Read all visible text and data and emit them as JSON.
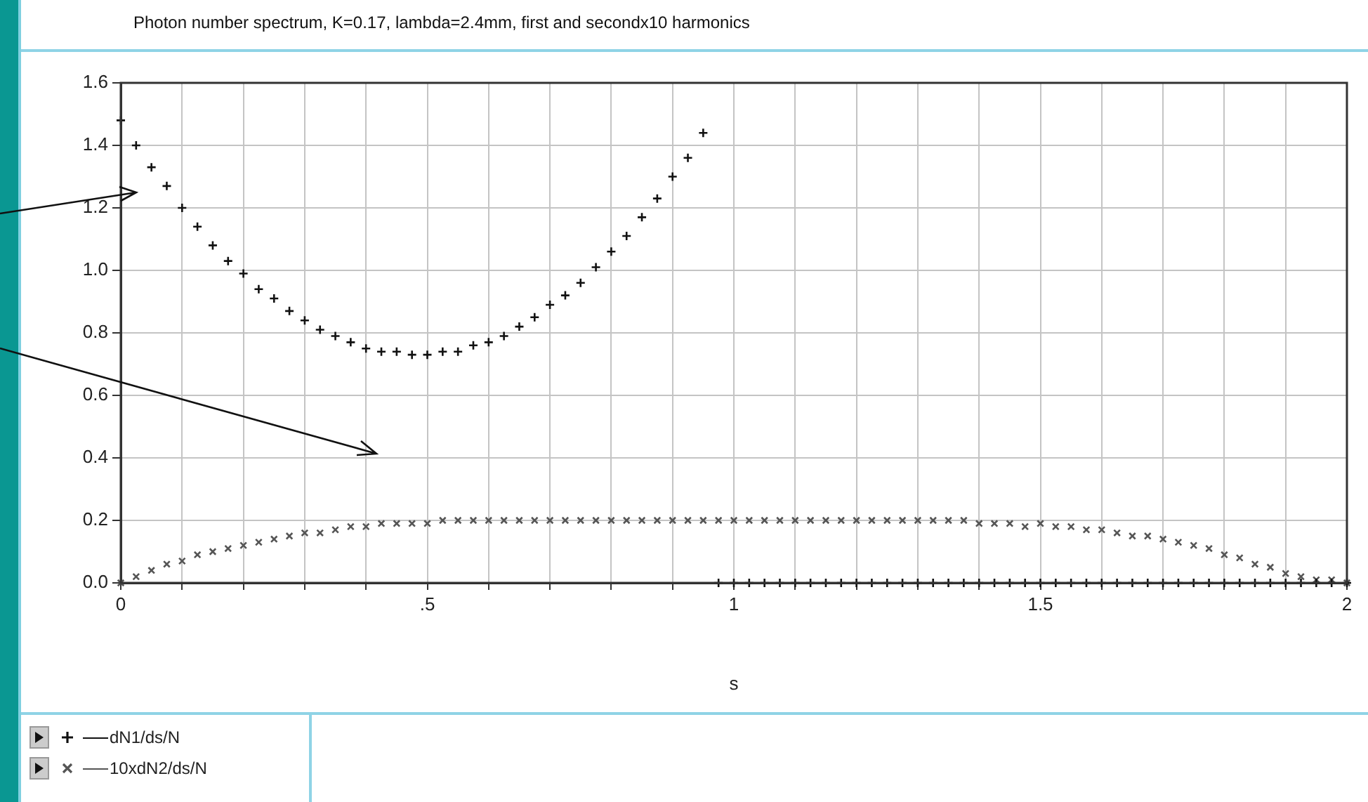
{
  "chart_data": {
    "type": "scatter",
    "title": "Photon number spectrum, K=0.17, lambda=2.4mm, first and secondx10  harmonics",
    "xlabel": "s",
    "x": [
      0,
      0.025,
      0.05,
      0.075,
      0.1,
      0.125,
      0.15,
      0.175,
      0.2,
      0.225,
      0.25,
      0.275,
      0.3,
      0.325,
      0.35,
      0.375,
      0.4,
      0.425,
      0.45,
      0.475,
      0.5,
      0.525,
      0.55,
      0.575,
      0.6,
      0.625,
      0.65,
      0.675,
      0.7,
      0.725,
      0.75,
      0.775,
      0.8,
      0.825,
      0.85,
      0.875,
      0.9,
      0.925,
      0.95,
      0.975,
      1,
      1.025,
      1.05,
      1.075,
      1.1,
      1.125,
      1.15,
      1.175,
      1.2,
      1.225,
      1.25,
      1.275,
      1.3,
      1.325,
      1.35,
      1.375,
      1.4,
      1.425,
      1.45,
      1.475,
      1.5,
      1.525,
      1.55,
      1.575,
      1.6,
      1.625,
      1.65,
      1.675,
      1.7,
      1.725,
      1.75,
      1.775,
      1.8,
      1.825,
      1.85,
      1.875,
      1.9,
      1.925,
      1.95,
      1.975,
      2
    ],
    "series": [
      {
        "name": "dN1/ds/N",
        "color": "#111111",
        "marker": "cross",
        "values": [
          1.48,
          1.4,
          1.33,
          1.27,
          1.2,
          1.14,
          1.08,
          1.03,
          0.99,
          0.94,
          0.91,
          0.87,
          0.84,
          0.81,
          0.79,
          0.77,
          0.75,
          0.74,
          0.74,
          0.73,
          0.73,
          0.74,
          0.74,
          0.76,
          0.77,
          0.79,
          0.82,
          0.85,
          0.89,
          0.92,
          0.96,
          1.01,
          1.06,
          1.11,
          1.17,
          1.23,
          1.3,
          1.36,
          1.44,
          0,
          0,
          0,
          0,
          0,
          0,
          0,
          0,
          0,
          0,
          0,
          0,
          0,
          0,
          0,
          0,
          0,
          0,
          0,
          0,
          0,
          0,
          0,
          0,
          0,
          0,
          0,
          0,
          0,
          0,
          0,
          0,
          0,
          0,
          0,
          0,
          0,
          0,
          0,
          0,
          0,
          0
        ]
      },
      {
        "name": "10xdN2/ds/N",
        "color": "#555555",
        "marker": "x",
        "values": [
          0,
          0.02,
          0.04,
          0.06,
          0.07,
          0.09,
          0.1,
          0.11,
          0.12,
          0.13,
          0.14,
          0.15,
          0.16,
          0.16,
          0.17,
          0.18,
          0.18,
          0.19,
          0.19,
          0.19,
          0.19,
          0.2,
          0.2,
          0.2,
          0.2,
          0.2,
          0.2,
          0.2,
          0.2,
          0.2,
          0.2,
          0.2,
          0.2,
          0.2,
          0.2,
          0.2,
          0.2,
          0.2,
          0.2,
          0.2,
          0.2,
          0.2,
          0.2,
          0.2,
          0.2,
          0.2,
          0.2,
          0.2,
          0.2,
          0.2,
          0.2,
          0.2,
          0.2,
          0.2,
          0.2,
          0.2,
          0.19,
          0.19,
          0.19,
          0.18,
          0.19,
          0.18,
          0.18,
          0.17,
          0.17,
          0.16,
          0.15,
          0.15,
          0.14,
          0.13,
          0.12,
          0.11,
          0.09,
          0.08,
          0.06,
          0.05,
          0.03,
          0.02,
          0.01,
          0.01,
          0
        ]
      }
    ],
    "xlim": [
      0,
      2
    ],
    "xticks": [
      {
        "value": 0,
        "label": "0"
      },
      {
        "value": 0.1,
        "label": null
      },
      {
        "value": 0.2,
        "label": null
      },
      {
        "value": 0.3,
        "label": null
      },
      {
        "value": 0.4,
        "label": null
      },
      {
        "value": 0.5,
        "label": ".5"
      },
      {
        "value": 0.6,
        "label": null
      },
      {
        "value": 0.7,
        "label": null
      },
      {
        "value": 0.8,
        "label": null
      },
      {
        "value": 0.9,
        "label": null
      },
      {
        "value": 1,
        "label": "1"
      },
      {
        "value": 1.1,
        "label": null
      },
      {
        "value": 1.2,
        "label": null
      },
      {
        "value": 1.3,
        "label": null
      },
      {
        "value": 1.4,
        "label": null
      },
      {
        "value": 1.5,
        "label": "1.5"
      },
      {
        "value": 1.6,
        "label": null
      },
      {
        "value": 1.7,
        "label": null
      },
      {
        "value": 1.8,
        "label": null
      },
      {
        "value": 1.9,
        "label": null
      },
      {
        "value": 2,
        "label": "2"
      }
    ],
    "ylim": [
      0,
      1.6
    ],
    "yticks": [
      {
        "value": 0,
        "label": "0.0"
      },
      {
        "value": 0.2,
        "label": "0.2"
      },
      {
        "value": 0.4,
        "label": "0.4"
      },
      {
        "value": 0.6,
        "label": "0.6"
      },
      {
        "value": 0.8,
        "label": "0.8"
      },
      {
        "value": 1,
        "label": "1.0"
      },
      {
        "value": 1.2,
        "label": "1.2"
      },
      {
        "value": 1.4,
        "label": "1.4"
      },
      {
        "value": 1.6,
        "label": "1.6"
      }
    ],
    "grid": true,
    "legend": "bottom"
  }
}
